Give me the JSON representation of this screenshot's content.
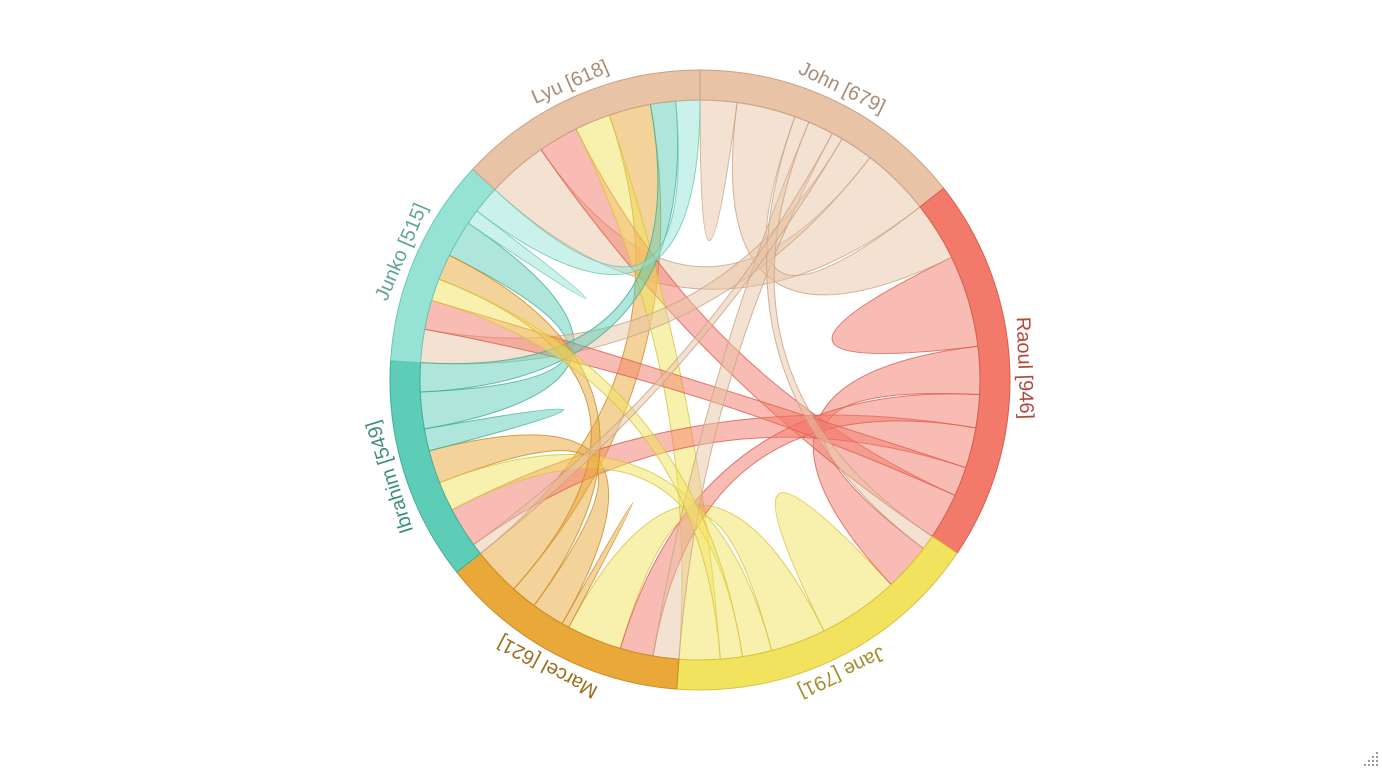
{
  "chart_data": {
    "type": "chord",
    "title": "",
    "groups": [
      {
        "name": "John",
        "value": 679,
        "color": "#e8c3a5",
        "stroke": "#c9a285",
        "label_color": "#a88c78"
      },
      {
        "name": "Raoul",
        "value": 946,
        "color": "#f37a6a",
        "stroke": "#d85e4e",
        "label_color": "#b5473c"
      },
      {
        "name": "Jane",
        "value": 791,
        "color": "#f2e35e",
        "stroke": "#d6c440",
        "label_color": "#a08f2c"
      },
      {
        "name": "Marcel",
        "value": 621,
        "color": "#e9a838",
        "stroke": "#c98b25",
        "label_color": "#9a6f1f"
      },
      {
        "name": "Ibrahim",
        "value": 549,
        "color": "#5ecdb8",
        "stroke": "#43ad99",
        "label_color": "#3f8f7c"
      },
      {
        "name": "Junko",
        "value": 515,
        "color": "#96e3d6",
        "stroke": "#6cc7b6",
        "label_color": "#5fa697"
      },
      {
        "name": "Lyu",
        "value": 618,
        "color": "#e8c3a5",
        "stroke": "#c9a285",
        "label_color": "#a88c78"
      }
    ],
    "matrix": [
      [
        100,
        160,
        40,
        70,
        30,
        90,
        189
      ],
      [
        160,
        250,
        130,
        90,
        110,
        80,
        126
      ],
      [
        40,
        130,
        220,
        150,
        80,
        60,
        111
      ],
      [
        70,
        90,
        150,
        20,
        90,
        70,
        131
      ],
      [
        30,
        110,
        80,
        90,
        60,
        100,
        79
      ],
      [
        90,
        80,
        60,
        70,
        100,
        40,
        75
      ],
      [
        189,
        126,
        111,
        131,
        79,
        75,
        -93
      ]
    ]
  },
  "labels": {
    "john": "John [679]",
    "raoul": "Raoul [946]",
    "jane": "Jane [791]",
    "marcel": "Marcel [621]",
    "ibrahim": "Ibrahim [549]",
    "junko": "Junko [515]",
    "lyu": "Lyu [618]"
  },
  "icons": {
    "resize": "resize-grip-icon"
  }
}
